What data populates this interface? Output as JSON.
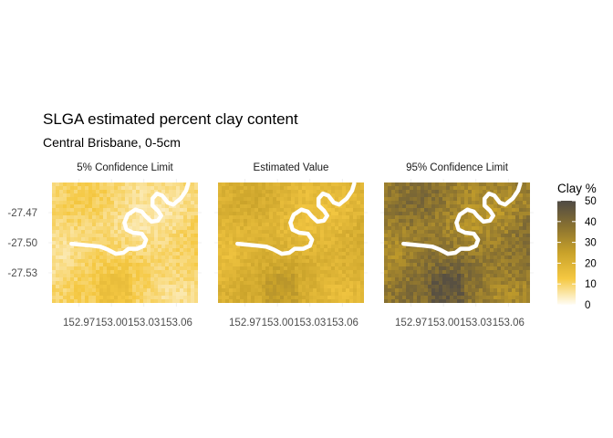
{
  "chart_data": {
    "type": "heatmap",
    "title": "SLGA estimated percent clay content",
    "subtitle": "Central Brisbane, 0-5cm",
    "panels": [
      {
        "label": "5% Confidence Limit",
        "low": 3,
        "high": 16
      },
      {
        "label": "Estimated Value",
        "low": 12,
        "high": 28
      },
      {
        "label": "95% Confidence Limit",
        "low": 24,
        "high": 48
      }
    ],
    "x_ticks": [
      "152.97",
      "153.00",
      "153.03",
      "153.06"
    ],
    "x_tick_values": [
      152.97,
      153.0,
      153.03,
      153.06
    ],
    "xlim": [
      152.945,
      153.08
    ],
    "y_ticks": [
      "-27.47",
      "-27.50",
      "-27.53"
    ],
    "y_tick_values": [
      -27.47,
      -27.5,
      -27.53
    ],
    "ylim": [
      -27.56,
      -27.44
    ],
    "legend": {
      "title": "Clay %",
      "ticks": [
        "0",
        "10",
        "20",
        "30",
        "40",
        "50"
      ],
      "tick_values": [
        0,
        10,
        20,
        30,
        40,
        50
      ],
      "colors": [
        "#fffdf5",
        "#f5c842",
        "#c9a22a",
        "#8a7230",
        "#4f4a45"
      ],
      "position": "right"
    },
    "river": {
      "description_path": "Brisbane River meander (lon, lat)",
      "points": [
        [
          153.071,
          -27.441
        ],
        [
          153.069,
          -27.448
        ],
        [
          153.064,
          -27.456
        ],
        [
          153.057,
          -27.462
        ],
        [
          153.052,
          -27.46
        ],
        [
          153.047,
          -27.453
        ],
        [
          153.042,
          -27.451
        ],
        [
          153.038,
          -27.456
        ],
        [
          153.038,
          -27.463
        ],
        [
          153.043,
          -27.468
        ],
        [
          153.046,
          -27.473
        ],
        [
          153.043,
          -27.478
        ],
        [
          153.037,
          -27.479
        ],
        [
          153.032,
          -27.474
        ],
        [
          153.028,
          -27.469
        ],
        [
          153.022,
          -27.467
        ],
        [
          153.015,
          -27.472
        ],
        [
          153.012,
          -27.48
        ],
        [
          153.014,
          -27.487
        ],
        [
          153.02,
          -27.49
        ],
        [
          153.028,
          -27.491
        ],
        [
          153.032,
          -27.497
        ],
        [
          153.03,
          -27.503
        ],
        [
          153.024,
          -27.506
        ],
        [
          153.016,
          -27.506
        ],
        [
          153.011,
          -27.51
        ],
        [
          153.004,
          -27.511
        ],
        [
          152.997,
          -27.507
        ],
        [
          152.99,
          -27.504
        ],
        [
          152.982,
          -27.503
        ],
        [
          152.973,
          -27.502
        ],
        [
          152.963,
          -27.501
        ]
      ]
    }
  }
}
